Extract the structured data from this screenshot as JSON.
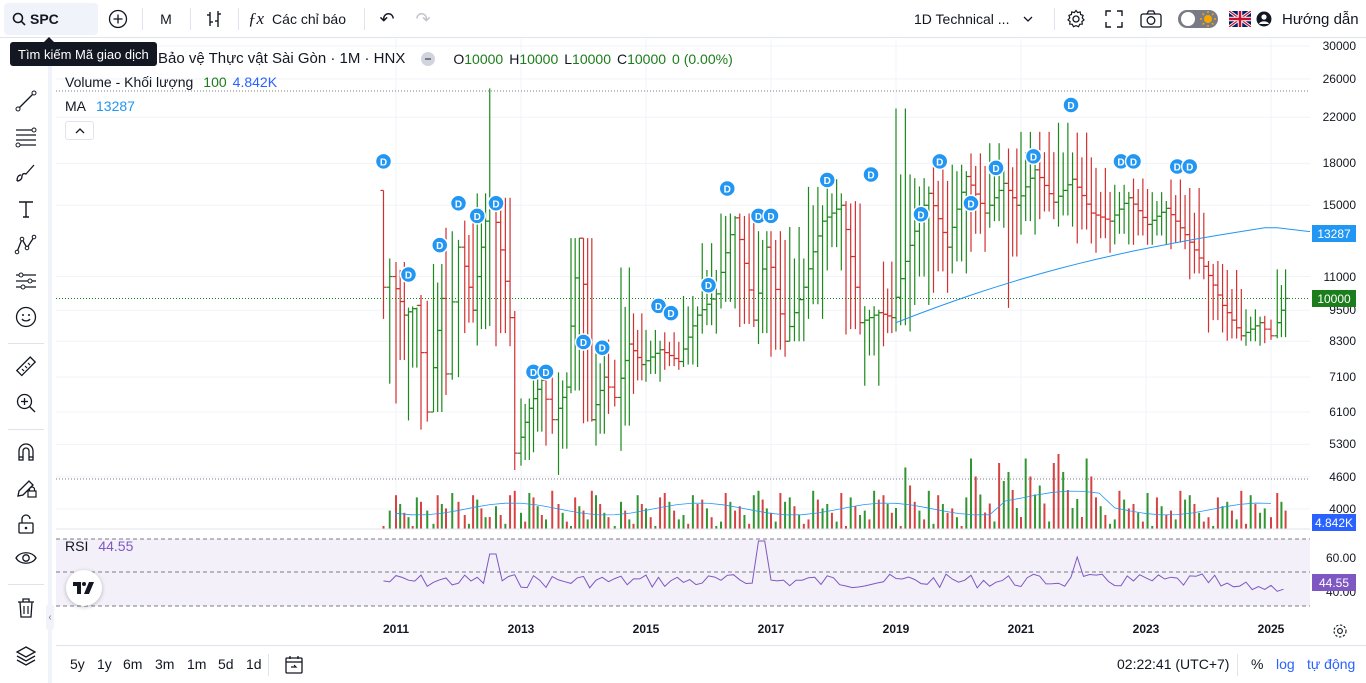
{
  "toolbar": {
    "symbol": "SPC",
    "interval": "M",
    "indicators_label": "Các chỉ báo",
    "layout_name": "1D Technical ...",
    "guide_label": "Hướng dẫn"
  },
  "tooltip": "Tìm kiếm Mã giao dịch",
  "legend": {
    "title": "Bảo vệ Thực vật Sài Gòn · 1M · HNX",
    "o_label": "O",
    "o_value": "10000",
    "h_label": "H",
    "h_value": "10000",
    "l_label": "L",
    "l_value": "10000",
    "c_label": "C",
    "c_value": "10000",
    "change": "0 (0.00%)",
    "volume_label": "Volume - Khối lượng",
    "volume_len": "100",
    "volume_value": "4.842K",
    "ma_label": "MA",
    "ma_value": "13287",
    "rsi_label": "RSI",
    "rsi_value": "44.55"
  },
  "price_scale": {
    "ticks": [
      "30000",
      "26000",
      "22000",
      "18000",
      "15000",
      "11000",
      "9500",
      "8300",
      "7100",
      "6100",
      "5300",
      "4600",
      "4000"
    ],
    "tags": {
      "ma": "13287",
      "last": "10000",
      "volume": "4.842K",
      "rsi": "44.55"
    },
    "rsi_ticks": [
      "60.00",
      "40.00"
    ]
  },
  "time_axis": [
    "2011",
    "2013",
    "2015",
    "2017",
    "2019",
    "2021",
    "2023",
    "2025"
  ],
  "bottom": {
    "ranges": [
      "5y",
      "1y",
      "6m",
      "3m",
      "1m",
      "5d",
      "1d"
    ],
    "clock": "02:22:41 (UTC+7)",
    "percent": "%",
    "log": "log",
    "auto": "tự động"
  },
  "dividend_marker": "D",
  "colors": {
    "up": "#089981",
    "down": "#f23645",
    "up_bar": "#1b8a1b",
    "down_bar": "#d32f2f",
    "ma": "#2196f3",
    "rsi": "#7e57c2",
    "accent": "#2962ff",
    "last": "#1b7d1b"
  },
  "chart_data": {
    "type": "ohlc",
    "series": [
      {
        "name": "Bảo vệ Thực vật Sài Gòn",
        "values": [
          [
            2010.8,
            16000,
            16000,
            9000,
            10500
          ],
          [
            2010.9,
            10500,
            12000,
            6500,
            11000
          ],
          [
            2011.0,
            11000,
            11800,
            6000,
            9300
          ],
          [
            2011.2,
            9300,
            9600,
            5500,
            9700
          ],
          [
            2011.4,
            9700,
            10200,
            5600,
            6100
          ],
          [
            2011.6,
            6100,
            11800,
            6100,
            10000
          ],
          [
            2011.8,
            10000,
            14000,
            6500,
            7200
          ],
          [
            2011.9,
            7200,
            13500,
            7000,
            12500
          ],
          [
            2012.1,
            12500,
            14200,
            8500,
            9500
          ],
          [
            2012.3,
            9500,
            16000,
            8000,
            14000
          ],
          [
            2012.5,
            14000,
            26000,
            8300,
            15500
          ],
          [
            2012.6,
            15500,
            15500,
            8000,
            9200
          ],
          [
            2012.9,
            9200,
            9500,
            4700,
            5100
          ],
          [
            2013.0,
            5100,
            6500,
            4800,
            6200
          ],
          [
            2013.2,
            6200,
            7200,
            5000,
            7000
          ],
          [
            2013.4,
            7000,
            7400,
            5200,
            5900
          ],
          [
            2013.6,
            5900,
            7300,
            4500,
            6800
          ],
          [
            2013.8,
            6800,
            13000,
            6600,
            13000
          ],
          [
            2014.0,
            13000,
            13000,
            5800,
            5900
          ],
          [
            2014.2,
            5900,
            8200,
            5200,
            7100
          ],
          [
            2014.4,
            7100,
            8500,
            6000,
            6500
          ],
          [
            2014.6,
            6500,
            11800,
            5000,
            8200
          ],
          [
            2014.8,
            8200,
            9500,
            6500,
            7500
          ],
          [
            2015.0,
            7500,
            8800,
            6900,
            8000
          ],
          [
            2015.3,
            8000,
            8700,
            7300,
            7600
          ],
          [
            2015.6,
            7600,
            10200,
            7400,
            9300
          ],
          [
            2015.9,
            9300,
            13000,
            8500,
            10200
          ],
          [
            2016.2,
            10200,
            14500,
            9500,
            14200
          ],
          [
            2016.5,
            14200,
            14500,
            8800,
            9100
          ],
          [
            2016.8,
            9100,
            13500,
            8100,
            12500
          ],
          [
            2017.0,
            12500,
            13500,
            7700,
            8300
          ],
          [
            2017.3,
            8300,
            14000,
            8300,
            10500
          ],
          [
            2017.6,
            10500,
            16500,
            9000,
            14000
          ],
          [
            2017.9,
            14000,
            17000,
            11000,
            15000
          ],
          [
            2018.2,
            15000,
            15300,
            8500,
            9000
          ],
          [
            2018.5,
            9000,
            9700,
            6600,
            9400
          ],
          [
            2018.8,
            9400,
            12000,
            8000,
            9200
          ],
          [
            2019.0,
            9200,
            24000,
            8600,
            12600
          ],
          [
            2019.3,
            12600,
            17000,
            9400,
            15800
          ],
          [
            2019.6,
            15800,
            18000,
            10000,
            12500
          ],
          [
            2019.9,
            12500,
            18000,
            11000,
            17000
          ],
          [
            2020.2,
            17000,
            19000,
            12000,
            14500
          ],
          [
            2020.5,
            14500,
            20000,
            13500,
            16500
          ],
          [
            2020.8,
            16500,
            19500,
            9000,
            15000
          ],
          [
            2021.0,
            15000,
            21000,
            13000,
            17500
          ],
          [
            2021.3,
            17500,
            21000,
            14000,
            15200
          ],
          [
            2021.6,
            15200,
            22000,
            13500,
            16800
          ],
          [
            2021.9,
            16800,
            21000,
            12500,
            14500
          ],
          [
            2022.2,
            14500,
            18000,
            12000,
            14000
          ],
          [
            2022.5,
            14000,
            16500,
            12500,
            15500
          ],
          [
            2022.8,
            15500,
            17000,
            12500,
            13800
          ],
          [
            2023.1,
            13800,
            16000,
            12500,
            14800
          ],
          [
            2023.4,
            14800,
            17000,
            12300,
            13200
          ],
          [
            2023.7,
            13200,
            16500,
            10800,
            11500
          ],
          [
            2024.0,
            11500,
            11800,
            8500,
            9700
          ],
          [
            2024.3,
            9700,
            11500,
            8300,
            8500
          ],
          [
            2024.6,
            8500,
            9600,
            8100,
            9000
          ],
          [
            2024.9,
            9000,
            9300,
            8200,
            8500
          ],
          [
            2025.1,
            8500,
            11500,
            8400,
            10000
          ]
        ]
      }
    ],
    "ma_value": 13287,
    "volume_last": "4.842K",
    "rsi_last": 44.55,
    "xlim": [
      2010,
      2026
    ],
    "ylim": [
      4000,
      30000
    ],
    "log_scale": true
  }
}
